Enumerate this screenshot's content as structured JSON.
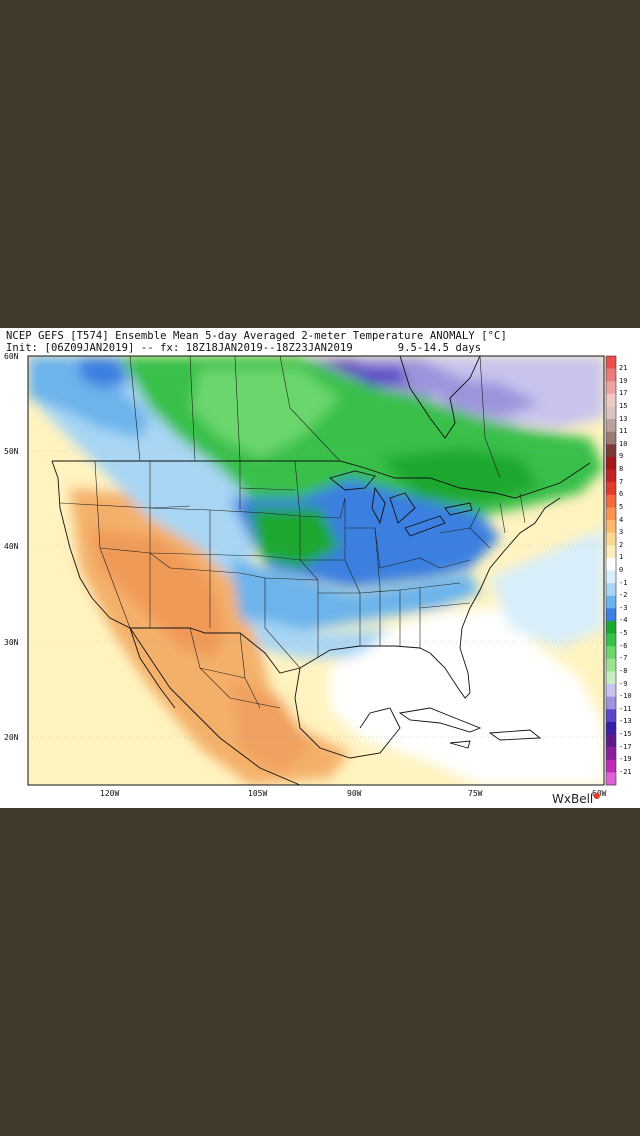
{
  "header": {
    "line1": "NCEP GEFS [T574] Ensemble Mean 5-day Averaged 2-meter Temperature ANOMALY [°C]",
    "line2": "Init: [06Z09JAN2019] -- fx: 18Z18JAN2019--18Z23JAN2019       9.5-14.5 days"
  },
  "axes": {
    "lat_labels": [
      "60N",
      "50N",
      "40N",
      "30N",
      "20N"
    ],
    "lon_labels": [
      "120W",
      "105W",
      "90W",
      "75W",
      "60W"
    ]
  },
  "colorbar": {
    "labels": [
      "21",
      "19",
      "17",
      "15",
      "13",
      "11",
      "10",
      "9",
      "8",
      "7",
      "6",
      "5",
      "4",
      "3",
      "2",
      "1",
      "0",
      "-1",
      "-2",
      "-3",
      "-4",
      "-5",
      "-6",
      "-7",
      "-8",
      "-9",
      "-10",
      "-11",
      "-13",
      "-15",
      "-17",
      "-19",
      "-21"
    ],
    "colors": [
      "#e8504e",
      "#e87a78",
      "#eda3a0",
      "#f2c8c4",
      "#d7c5c1",
      "#b9a09a",
      "#9a7a74",
      "#7a3a34",
      "#a01818",
      "#c02424",
      "#e03c2a",
      "#f06a3c",
      "#f8944e",
      "#fcb86c",
      "#fdd690",
      "#fdedba",
      "#ffffff",
      "#d8eefa",
      "#a8d6f4",
      "#6cb4ec",
      "#3b7fe0",
      "#1aa82e",
      "#37c04a",
      "#6ad66c",
      "#9ee394",
      "#c8eec0",
      "#c8c4ee",
      "#9c94dc",
      "#5a48c6",
      "#3a1fa6",
      "#5e1a8a",
      "#8a1f9c",
      "#c02ab8",
      "#e060d8"
    ]
  },
  "brand": {
    "name": "WxBell",
    "accent": "#e03c2a"
  }
}
